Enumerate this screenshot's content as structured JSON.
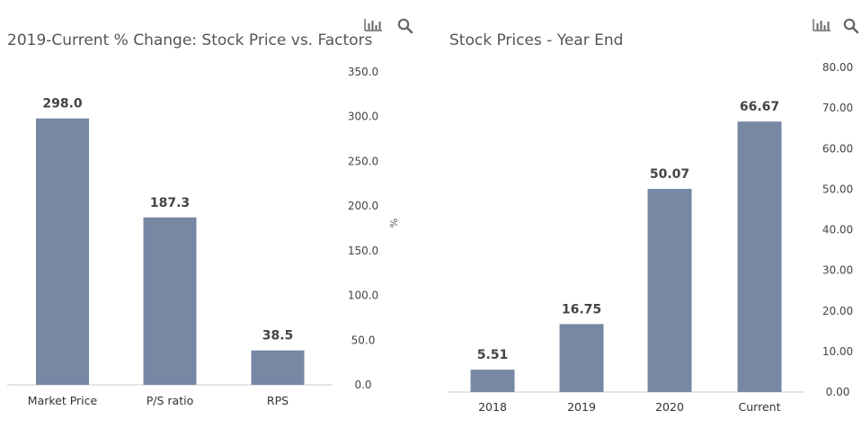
{
  "colors": {
    "bar": "#7788a5",
    "axis": "#cccccc",
    "icon": "#666666"
  },
  "icons": [
    "chart-icon",
    "zoom-icon"
  ],
  "chart_data": [
    {
      "type": "bar",
      "title": "2019-Current % Change: Stock Price vs. Factors",
      "categories": [
        "Market Price",
        "P/S ratio",
        "RPS"
      ],
      "values": [
        298.0,
        187.3,
        38.5
      ],
      "value_labels": [
        "298.0",
        "187.3",
        "38.5"
      ],
      "ylabel": "%",
      "ylim": [
        0,
        350
      ],
      "yticks": [
        "0.0",
        "50.0",
        "100.0",
        "150.0",
        "200.0",
        "250.0",
        "300.0",
        "350.0"
      ],
      "y_axis_side": "right",
      "grid": false
    },
    {
      "type": "bar",
      "title": "Stock Prices - Year End",
      "categories": [
        "2018",
        "2019",
        "2020",
        "Current"
      ],
      "values": [
        5.51,
        16.75,
        50.07,
        66.67
      ],
      "value_labels": [
        "5.51",
        "16.75",
        "50.07",
        "66.67"
      ],
      "ylabel": "",
      "ylim": [
        0,
        80
      ],
      "yticks": [
        "0.00",
        "10.00",
        "20.00",
        "30.00",
        "40.00",
        "50.00",
        "60.00",
        "70.00",
        "80.00"
      ],
      "y_axis_side": "right",
      "grid": false
    }
  ]
}
